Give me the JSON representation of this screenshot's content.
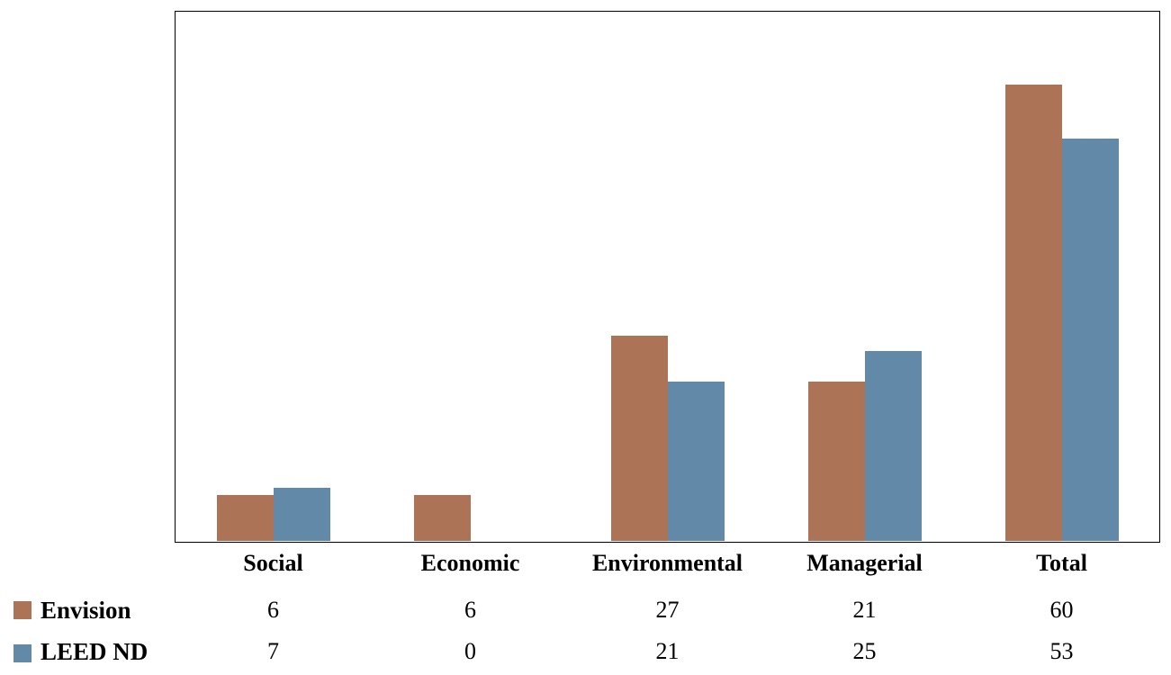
{
  "chart_data": {
    "type": "bar",
    "categories": [
      "Social",
      "Economic",
      "Environmental",
      "Managerial",
      "Total"
    ],
    "series": [
      {
        "name": "Envision",
        "color": "#AD7356",
        "values": [
          6,
          6,
          27,
          21,
          60
        ]
      },
      {
        "name": "LEED ND",
        "color": "#6389A8",
        "values": [
          7,
          0,
          21,
          25,
          53
        ]
      }
    ],
    "title": "",
    "xlabel": "",
    "ylabel": "",
    "ylim": [
      0,
      70
    ],
    "grid": false,
    "legend_position": "bottom-left",
    "axis_color": "#000000",
    "background_color": "#ffffff"
  }
}
